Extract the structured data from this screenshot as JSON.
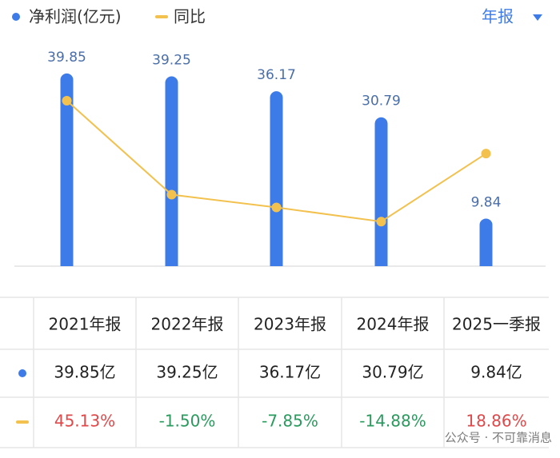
{
  "chart_data": {
    "type": "bar",
    "legend": [
      "净利润(亿元)",
      "同比"
    ],
    "period_selector": "年报",
    "categories": [
      "2021年报",
      "2022年报",
      "2023年报",
      "2024年报",
      "2025一季报"
    ],
    "series": [
      {
        "name": "净利润(亿元)",
        "type": "bar",
        "color": "#3d7ce8",
        "values": [
          39.85,
          39.25,
          36.17,
          30.79,
          9.84
        ],
        "value_labels": [
          "39.85亿",
          "39.25亿",
          "36.17亿",
          "30.79亿",
          "9.84亿"
        ]
      },
      {
        "name": "同比",
        "type": "line",
        "axis": "y2",
        "color": "#f2c14e",
        "values": [
          45.13,
          -1.5,
          -7.85,
          -14.88,
          18.86
        ],
        "value_labels": [
          "45.13%",
          "-1.50%",
          "-7.85%",
          "-14.88%",
          "18.86%"
        ],
        "positive_color": "#e0484a",
        "negative_color": "#2a9a5e"
      }
    ],
    "ylim": [
      0,
      40
    ],
    "y2lim": [
      -37,
      59
    ],
    "watermark": "公众号 · 不可靠消息"
  }
}
